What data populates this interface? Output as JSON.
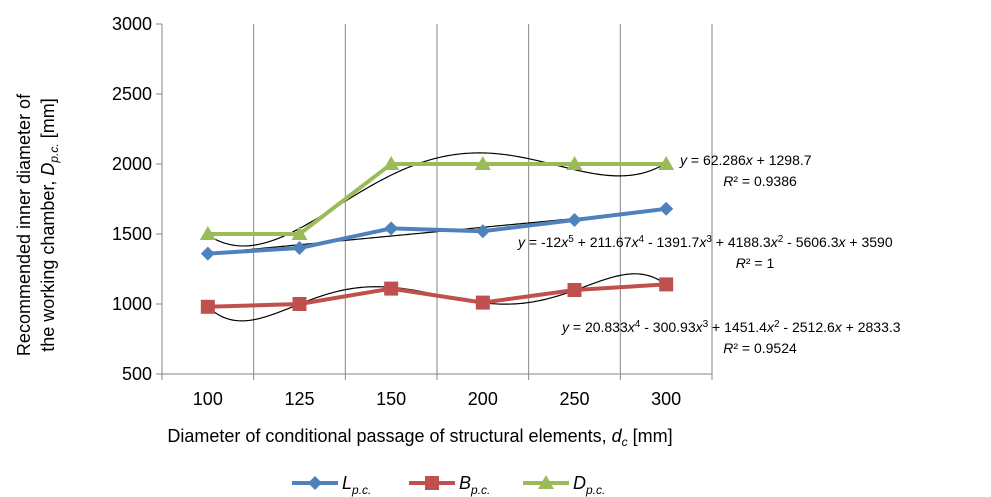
{
  "chart_data": {
    "type": "line",
    "categories": [
      "100",
      "125",
      "150",
      "200",
      "250",
      "300"
    ],
    "ylim": [
      500,
      3000
    ],
    "yticks": [
      500,
      1000,
      1500,
      2000,
      2500,
      3000
    ],
    "grid": "vertical",
    "legend_position": "bottom",
    "ylabel_line1": "Recommended inner diameter of",
    "ylabel_line2_prefix": "the working chamber, ",
    "ylabel_line2_var": "D",
    "ylabel_line2_sub": "p.c.",
    "ylabel_line2_suffix": " [mm]",
    "xlabel_prefix": "Diameter of conditional passage of structural elements, ",
    "xlabel_var": "d",
    "xlabel_sub": "c",
    "xlabel_suffix": " [mm]",
    "series": [
      {
        "name_var": "L",
        "name_sub": "p.c.",
        "values": [
          1360,
          1400,
          1540,
          1520,
          1600,
          1680
        ],
        "color": "#4f81bd",
        "marker": "diamond"
      },
      {
        "name_var": "B",
        "name_sub": "p.c.",
        "values": [
          980,
          1000,
          1110,
          1010,
          1100,
          1140
        ],
        "color": "#c0504d",
        "marker": "square"
      },
      {
        "name_var": "D",
        "name_sub": "p.c.",
        "values": [
          1500,
          1500,
          2000,
          2000,
          2000,
          2000
        ],
        "color": "#9bbb59",
        "marker": "triangle"
      }
    ],
    "trendlines": [
      {
        "equation": "y = 62.286x + 1298.7",
        "r2": "R² = 0.9386",
        "type": "linear",
        "coef": [
          1298.7,
          62.286
        ],
        "series": "L"
      },
      {
        "equation": "y = -12x5 + 211.67x4 - 1391.7x3 + 4188.3x2 - 5606.3x + 3590",
        "r2": "R² = 1",
        "type": "poly",
        "coef": [
          3590,
          -5606.3,
          4188.3,
          -1391.7,
          211.67,
          -12
        ],
        "series": "D"
      },
      {
        "equation": "y = 20.833x4 - 300.93x3 + 1451.4x2 - 2512.6x + 2833.3",
        "r2": "R² = 0.9524",
        "type": "poly",
        "coef": [
          2833.3,
          -2512.6,
          1451.4,
          -300.93,
          20.833
        ],
        "series": "B"
      }
    ]
  }
}
